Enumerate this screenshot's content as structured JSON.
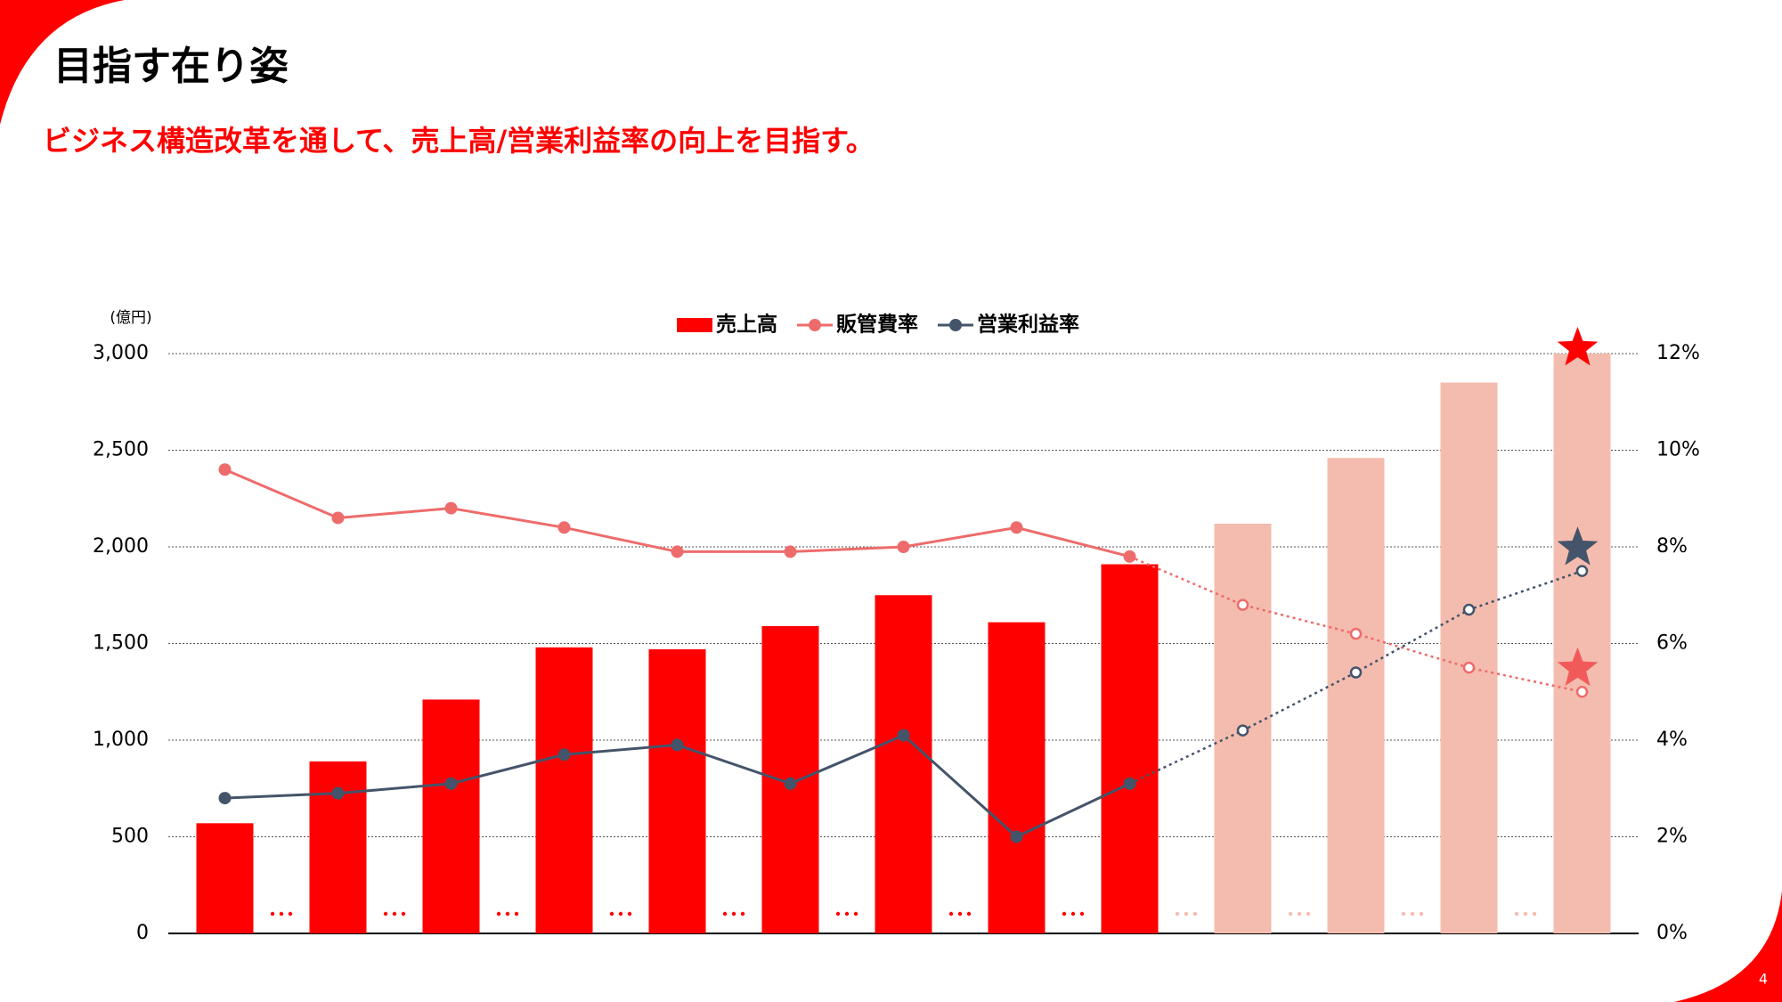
{
  "title": "目指す在り姿",
  "subtitle": "ビジネス構造改革を通して、売上高/営業利益率の向上を目指す。",
  "page_number": "4",
  "chart_data": {
    "type": "bar_line",
    "y_unit_label": "(億円)",
    "categories": [
      null,
      null,
      null,
      null,
      null,
      null,
      null,
      null,
      null,
      null,
      null,
      null,
      null
    ],
    "forecast_start": 9,
    "series": [
      {
        "name": "売上高",
        "type": "bar",
        "color": "#ff0000",
        "colors": [
          "#ff0000",
          "#ff0000",
          "#ff0000",
          "#ff0000",
          "#ff0000",
          "#ff0000",
          "#ff0000",
          "#ff0000",
          "#ff0000",
          "#f4bcae",
          "#f4bcae",
          "#f4bcae",
          "#f4bcae"
        ],
        "values": [
          570,
          890,
          1210,
          1480,
          1470,
          1590,
          1750,
          1610,
          1910,
          2120,
          2460,
          2850,
          3000
        ]
      },
      {
        "name": "販管費率",
        "type": "line",
        "axis": "y2",
        "color": "#ee6b6b",
        "values": [
          9.6,
          8.6,
          8.8,
          8.4,
          7.9,
          7.9,
          8.0,
          8.4,
          7.8,
          6.8,
          6.2,
          5.5,
          5.0
        ]
      },
      {
        "name": "営業利益率",
        "type": "line",
        "axis": "y2",
        "color": "#44546a",
        "values": [
          2.8,
          2.9,
          3.1,
          3.7,
          3.9,
          3.1,
          4.1,
          2.0,
          3.1,
          4.2,
          5.4,
          6.7,
          7.5
        ]
      }
    ],
    "ylim": [
      0,
      3000
    ],
    "yticks": [
      0,
      500,
      {
        "value": 1000,
        "label": "1,000"
      },
      {
        "value": 1500,
        "label": "1,500"
      },
      {
        "value": 2000,
        "label": "2,000"
      },
      {
        "value": 2500,
        "label": "2,500"
      },
      {
        "value": 3000,
        "label": "3,000"
      }
    ],
    "y2lim": [
      0,
      12
    ],
    "y2ticks": [
      {
        "value": 0,
        "label": "0%"
      },
      {
        "value": 2,
        "label": "2%"
      },
      {
        "value": 4,
        "label": "4%"
      },
      {
        "value": 6,
        "label": "6%"
      },
      {
        "value": 8,
        "label": "8%"
      },
      {
        "value": 10,
        "label": "10%"
      },
      {
        "value": 12,
        "label": "12%"
      }
    ],
    "grid": true,
    "legend": "top"
  }
}
